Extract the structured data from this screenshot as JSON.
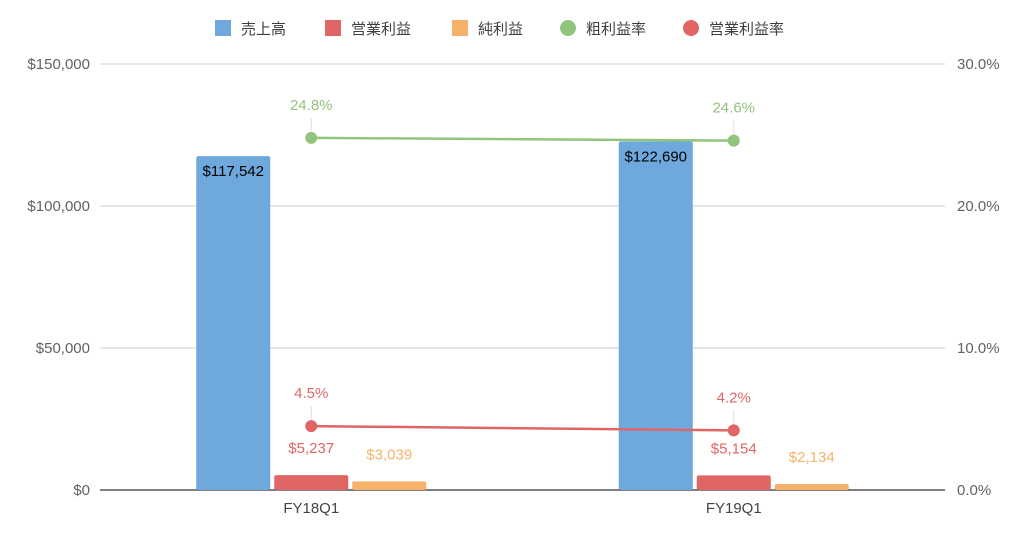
{
  "chart_data": {
    "type": "bar",
    "categories": [
      "FY18Q1",
      "FY19Q1"
    ],
    "series": [
      {
        "name": "売上高",
        "axis": "left",
        "kind": "bar",
        "color": "#6fa8dc",
        "label_color": "#000000",
        "values": [
          117542,
          122690
        ],
        "labels": [
          "$117,542",
          "$122,690"
        ]
      },
      {
        "name": "営業利益",
        "axis": "left",
        "kind": "bar",
        "color": "#e06666",
        "label_color": "#e06666",
        "values": [
          5237,
          5154
        ],
        "labels": [
          "$5,237",
          "$5,154"
        ]
      },
      {
        "name": "純利益",
        "axis": "left",
        "kind": "bar",
        "color": "#f6b26b",
        "label_color": "#f6b26b",
        "values": [
          3039,
          2134
        ],
        "labels": [
          "$3,039",
          "$2,134"
        ]
      },
      {
        "name": "粗利益率",
        "axis": "right",
        "kind": "line",
        "color": "#93c47d",
        "label_color": "#93c47d",
        "values": [
          24.8,
          24.6
        ],
        "labels": [
          "24.8%",
          "24.6%"
        ]
      },
      {
        "name": "営業利益率",
        "axis": "right",
        "kind": "line",
        "color": "#e06666",
        "label_color": "#e06666",
        "values": [
          4.5,
          4.2
        ],
        "labels": [
          "4.5%",
          "4.2%"
        ]
      }
    ],
    "left_axis": {
      "min": 0,
      "max": 150000,
      "ticks": [
        0,
        50000,
        100000,
        150000
      ],
      "tick_labels": [
        "$0",
        "$50,000",
        "$100,000",
        "$150,000"
      ]
    },
    "right_axis": {
      "min": 0,
      "max": 30,
      "ticks": [
        0,
        10,
        20,
        30
      ],
      "tick_labels": [
        "0.0%",
        "10.0%",
        "20.0%",
        "30.0%"
      ]
    },
    "grid": true,
    "legend_position": "top"
  }
}
